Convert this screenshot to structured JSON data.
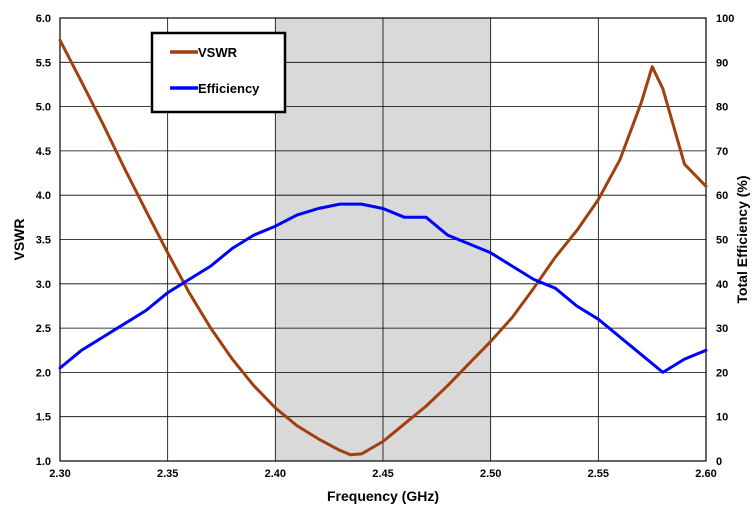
{
  "chart_data": {
    "type": "line",
    "title": "",
    "xlabel": "Frequency (GHz)",
    "ylabel": "VSWR",
    "y2label": "Total Efficiency (%)",
    "xlim": [
      2.3,
      2.6
    ],
    "ylim": [
      1.0,
      6.0
    ],
    "y2lim": [
      0,
      100
    ],
    "x_ticks": [
      "2.30",
      "2.35",
      "2.40",
      "2.45",
      "2.50",
      "2.55",
      "2.60"
    ],
    "y_ticks": [
      "1.0",
      "1.5",
      "2.0",
      "2.5",
      "3.0",
      "3.5",
      "4.0",
      "4.5",
      "5.0",
      "5.5",
      "6.0"
    ],
    "y2_ticks": [
      "0",
      "10",
      "20",
      "30",
      "40",
      "50",
      "60",
      "70",
      "80",
      "90",
      "100"
    ],
    "grid": true,
    "shaded_band": [
      2.4,
      2.5
    ],
    "shaded_color": "#d9d9d9",
    "legend_position": "top-left",
    "series": [
      {
        "name": "VSWR",
        "axis": "left",
        "color": "#a0400f",
        "x": [
          2.3,
          2.31,
          2.32,
          2.33,
          2.34,
          2.35,
          2.36,
          2.37,
          2.38,
          2.39,
          2.4,
          2.41,
          2.42,
          2.43,
          2.435,
          2.44,
          2.45,
          2.46,
          2.47,
          2.48,
          2.49,
          2.5,
          2.51,
          2.52,
          2.53,
          2.54,
          2.55,
          2.56,
          2.57,
          2.575,
          2.58,
          2.59,
          2.6
        ],
        "values": [
          5.75,
          5.28,
          4.8,
          4.3,
          3.82,
          3.35,
          2.9,
          2.5,
          2.15,
          1.85,
          1.6,
          1.4,
          1.25,
          1.12,
          1.07,
          1.08,
          1.22,
          1.42,
          1.62,
          1.85,
          2.1,
          2.35,
          2.62,
          2.95,
          3.3,
          3.6,
          3.95,
          4.4,
          5.05,
          5.45,
          5.2,
          4.35,
          4.1
        ]
      },
      {
        "name": "Efficiency",
        "axis": "right",
        "color": "#0000ff",
        "x": [
          2.3,
          2.31,
          2.32,
          2.33,
          2.34,
          2.35,
          2.36,
          2.37,
          2.38,
          2.39,
          2.4,
          2.41,
          2.42,
          2.43,
          2.44,
          2.45,
          2.46,
          2.47,
          2.48,
          2.49,
          2.5,
          2.51,
          2.52,
          2.53,
          2.54,
          2.55,
          2.56,
          2.57,
          2.58,
          2.59,
          2.6
        ],
        "values": [
          21,
          25,
          28,
          31,
          34,
          38,
          41,
          44,
          48,
          51,
          53,
          55.5,
          57,
          58,
          58,
          57,
          55,
          55,
          51,
          49,
          47,
          44,
          41,
          39,
          35,
          32,
          28,
          24,
          20,
          23,
          25
        ]
      }
    ]
  }
}
